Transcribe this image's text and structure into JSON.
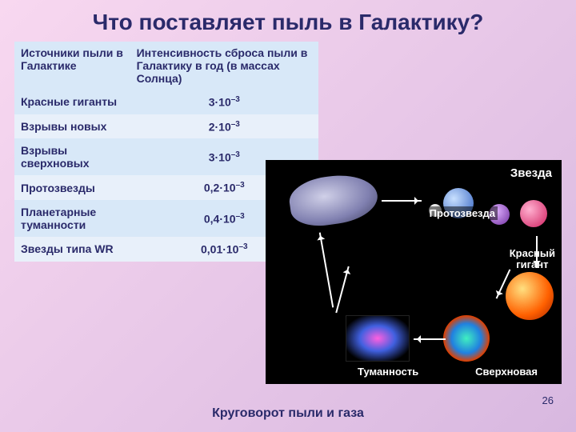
{
  "title": "Что поставляет пыль в Галактику?",
  "table": {
    "header_col1": "Источники пыли в   Галактике",
    "header_col2": "Интенсивность сброса пыли в   Галактику в год (в массах Солнца)",
    "rows": [
      {
        "src": "Красные гиганты",
        "val": "3·10",
        "exp": "–3"
      },
      {
        "src": "Взрывы новых",
        "val": "2·10",
        "exp": "–3"
      },
      {
        "src": "Взрывы сверхновых",
        "val": "3·10",
        "exp": "–3"
      },
      {
        "src": "Протозвезды",
        "val": "0,2·10",
        "exp": "–3"
      },
      {
        "src": "Планетарные туманности",
        "val": "0,4·10",
        "exp": "–3"
      },
      {
        "src": "Звезды типа WR",
        "val": "0,01·10",
        "exp": "–3"
      }
    ]
  },
  "diagram": {
    "star": "Звезда",
    "proto": "Протозвезда",
    "redgiant_l1": "Красный",
    "redgiant_l2": "гигант",
    "nebula": "Туманность",
    "supernova": "Сверхновая"
  },
  "caption": "Круговорот пыли и газа",
  "pagenum": "26",
  "colors": {
    "title": "#2a2a6a",
    "th_bg": "#d8e8f8",
    "td_bg": "#e8f0fa",
    "diagram_bg": "#000000"
  }
}
